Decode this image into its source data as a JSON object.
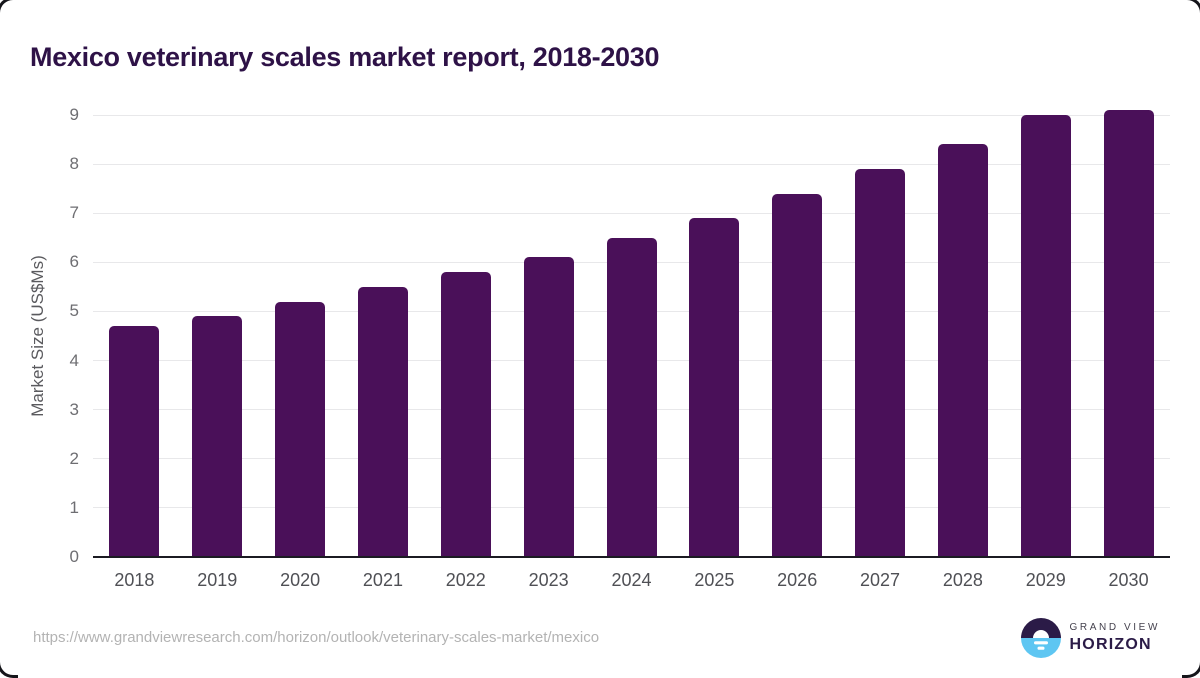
{
  "title": "Mexico veterinary scales market report, 2018-2030",
  "chart_data": {
    "type": "bar",
    "categories": [
      "2018",
      "2019",
      "2020",
      "2021",
      "2022",
      "2023",
      "2024",
      "2025",
      "2026",
      "2027",
      "2028",
      "2029",
      "2030"
    ],
    "values": [
      4.7,
      4.9,
      5.2,
      5.5,
      5.8,
      6.1,
      6.5,
      6.9,
      7.4,
      7.9,
      8.4,
      9.0,
      9.1
    ],
    "title": "Mexico veterinary scales market report, 2018-2030",
    "xlabel": "",
    "ylabel": "Market Size (US$Ms)",
    "ylim": [
      0,
      9
    ],
    "ytick_step": 1,
    "grid": true,
    "legend": "none",
    "bar_color": "#4a1059"
  },
  "colors": {
    "title": "#2e1247",
    "bar": "#4a1059",
    "gridline": "#e8e8ea",
    "axis_line": "#1b1b22",
    "y_tick_text": "#6e6e72",
    "x_tick_text": "#4f5055",
    "url_text": "#b3b3b3",
    "logo_dark": "#2b1b47",
    "logo_blue": "#5ec6f2"
  },
  "footer": {
    "source_url": "https://www.grandviewresearch.com/horizon/outlook/veterinary-scales-market/mexico"
  },
  "logo": {
    "line1": "GRAND VIEW",
    "line2": "HORIZON"
  }
}
